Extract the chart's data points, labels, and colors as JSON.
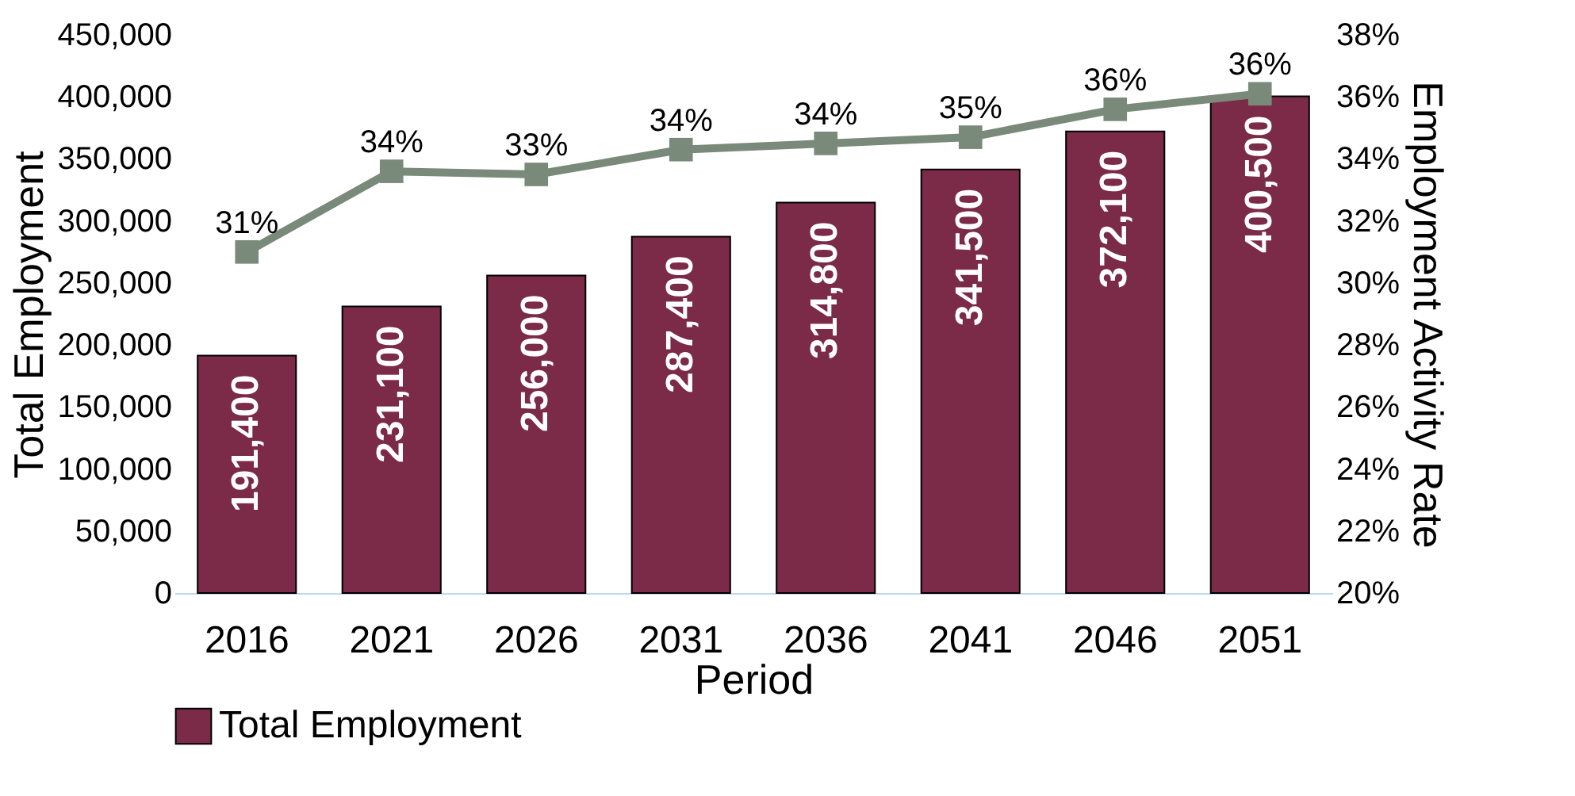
{
  "chart_data": {
    "type": "bar",
    "xlabel": "Period",
    "ylabel": "Total Employment",
    "y2label": "Employment Activity Rate",
    "categories": [
      "2016",
      "2021",
      "2026",
      "2031",
      "2036",
      "2041",
      "2046",
      "2051"
    ],
    "series": [
      {
        "name": "Total Employment",
        "color": "#7b2a47",
        "values": [
          191400,
          231100,
          256000,
          287400,
          314800,
          341500,
          372100,
          400500
        ],
        "value_labels": [
          "191,400",
          "231,100",
          "256,000",
          "287,400",
          "314,800",
          "341,500",
          "372,100",
          "400,500"
        ]
      },
      {
        "type": "line",
        "axis": "y2",
        "color": "#7a8a7a",
        "marker": "square",
        "values": [
          31.0,
          33.6,
          33.5,
          34.3,
          34.5,
          34.7,
          35.6,
          36.1
        ],
        "value_labels": [
          "31%",
          "34%",
          "33%",
          "34%",
          "34%",
          "35%",
          "36%",
          "36%"
        ]
      }
    ],
    "ylim": [
      0,
      450000
    ],
    "yticks": [
      0,
      {
        "value": 50000,
        "label": "50,000"
      },
      {
        "value": 100000,
        "label": "100,000"
      },
      {
        "value": 150000,
        "label": "150,000"
      },
      {
        "value": 200000,
        "label": "200,000"
      },
      {
        "value": 250000,
        "label": "250,000"
      },
      {
        "value": 300000,
        "label": "300,000"
      },
      {
        "value": 350000,
        "label": "350,000"
      },
      {
        "value": 400000,
        "label": "400,000"
      },
      {
        "value": 450000,
        "label": "450,000"
      }
    ],
    "y2lim": [
      20,
      38
    ],
    "y2ticks": [
      {
        "value": 20,
        "label": "20%"
      },
      {
        "value": 22,
        "label": "22%"
      },
      {
        "value": 24,
        "label": "24%"
      },
      {
        "value": 26,
        "label": "26%"
      },
      {
        "value": 28,
        "label": "28%"
      },
      {
        "value": 30,
        "label": "30%"
      },
      {
        "value": 32,
        "label": "32%"
      },
      {
        "value": 34,
        "label": "34%"
      },
      {
        "value": 36,
        "label": "36%"
      },
      {
        "value": 38,
        "label": "38%"
      }
    ],
    "legend": "bottom",
    "grid": false
  }
}
